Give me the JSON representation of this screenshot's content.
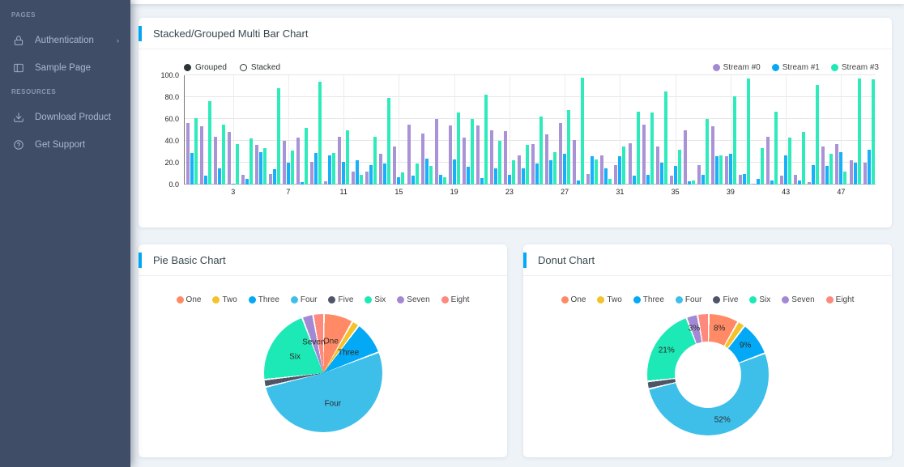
{
  "sidebar": {
    "sections": [
      {
        "label": "PAGES",
        "items": [
          {
            "label": "Authentication",
            "icon": "lock-icon",
            "has_submenu": true
          },
          {
            "label": "Sample Page",
            "icon": "layout-sidebar-icon",
            "has_submenu": false
          }
        ]
      },
      {
        "label": "RESOURCES",
        "items": [
          {
            "label": "Download Product",
            "icon": "download-icon",
            "has_submenu": false
          },
          {
            "label": "Get Support",
            "icon": "help-circle-icon",
            "has_submenu": false
          }
        ]
      }
    ]
  },
  "cards": {
    "multibar": {
      "title": "Stacked/Grouped Multi Bar Chart"
    },
    "pie": {
      "title": "Pie Basic Chart"
    },
    "donut": {
      "title": "Donut Chart"
    }
  },
  "accent_color": "#04a9f5",
  "sidebar_color": "#3f4d67",
  "chart_data": [
    {
      "type": "bar",
      "title": "Stacked/Grouped Multi Bar Chart",
      "mode_controls": [
        {
          "label": "Grouped",
          "selected": true
        },
        {
          "label": "Stacked",
          "selected": false
        }
      ],
      "ylim": [
        0,
        100
      ],
      "y_ticks": [
        "0.0",
        "20.0",
        "40.0",
        "60.0",
        "80.0",
        "100.0"
      ],
      "x_ticks": [
        3,
        7,
        11,
        15,
        19,
        23,
        27,
        31,
        35,
        39,
        43,
        47
      ],
      "groups": 50,
      "grid": true,
      "legend_position": "top-right",
      "series": [
        {
          "name": "Stream #0",
          "color": "#a389d4",
          "values": [
            56,
            53,
            44,
            48,
            9,
            36,
            10,
            40,
            43,
            21,
            3,
            44,
            12,
            12,
            28,
            35,
            55,
            47,
            60,
            54,
            43,
            54,
            50,
            49,
            27,
            37,
            46,
            56,
            41,
            10,
            27,
            18,
            38,
            55,
            35,
            8,
            50,
            18,
            53,
            26,
            9,
            1,
            44,
            8,
            9,
            2,
            35,
            37,
            22,
            20
          ]
        },
        {
          "name": "Stream #1",
          "color": "#04a9f5",
          "values": [
            29,
            8,
            15,
            1,
            5,
            30,
            14,
            20,
            2,
            29,
            27,
            21,
            22,
            18,
            19,
            7,
            8,
            24,
            9,
            23,
            16,
            6,
            15,
            9,
            15,
            19,
            22,
            28,
            4,
            26,
            15,
            26,
            8,
            9,
            20,
            17,
            3,
            9,
            26,
            28,
            10,
            5,
            4,
            27,
            4,
            18,
            17,
            30,
            20,
            32
          ]
        },
        {
          "name": "Stream #3",
          "color": "#1de9b6",
          "values": [
            61,
            76,
            55,
            37,
            42,
            33,
            88,
            31,
            52,
            94,
            29,
            50,
            9,
            44,
            79,
            11,
            19,
            17,
            7,
            66,
            60,
            82,
            40,
            22,
            36,
            62,
            30,
            68,
            98,
            23,
            5,
            35,
            67,
            66,
            85,
            32,
            4,
            60,
            27,
            81,
            97,
            33,
            67,
            43,
            48,
            91,
            28,
            12,
            97,
            96
          ]
        }
      ]
    },
    {
      "type": "pie",
      "title": "Pie Basic Chart",
      "labels": [
        "One",
        "Two",
        "Three",
        "Four",
        "Five",
        "Six",
        "Seven",
        "Eight"
      ],
      "values": [
        8,
        2,
        9,
        52,
        2,
        21,
        3,
        3
      ],
      "colors": [
        "#ff8a65",
        "#f4c22b",
        "#04a9f5",
        "#3ebfea",
        "#4f5467",
        "#1de9b6",
        "#a389d4",
        "#fe8a7d"
      ],
      "shown_labels": [
        "One",
        "",
        "Three",
        "Four",
        "",
        "Six",
        "Seven",
        ""
      ],
      "legend_position": "top-center"
    },
    {
      "type": "pie",
      "donut": true,
      "title": "Donut Chart",
      "labels": [
        "One",
        "Two",
        "Three",
        "Four",
        "Five",
        "Six",
        "Seven",
        "Eight"
      ],
      "values": [
        8,
        2,
        9,
        52,
        2,
        21,
        3,
        3
      ],
      "colors": [
        "#ff8a65",
        "#f4c22b",
        "#04a9f5",
        "#3ebfea",
        "#4f5467",
        "#1de9b6",
        "#a389d4",
        "#fe8a7d"
      ],
      "shown_labels": [
        "8%",
        "",
        "9%",
        "52%",
        "",
        "21%",
        "3%",
        ""
      ],
      "legend_position": "top-center"
    }
  ]
}
